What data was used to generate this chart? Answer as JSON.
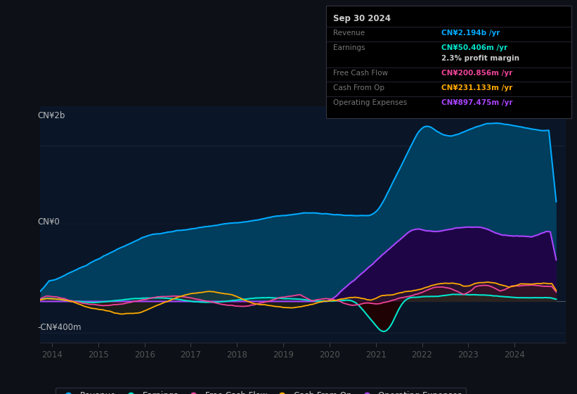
{
  "bg_color": "#0d1117",
  "plot_bg_color": "#0a1628",
  "ylabel_top": "CN¥2b",
  "ylabel_bottom": "-CN¥400m",
  "ylabel_zero": "CN¥0",
  "colors": {
    "revenue": "#00aaff",
    "earnings": "#00e5cc",
    "free_cash_flow": "#ee4499",
    "cash_from_op": "#ffaa00",
    "operating_expenses": "#aa44ff"
  },
  "legend_items": [
    "Revenue",
    "Earnings",
    "Free Cash Flow",
    "Cash From Op",
    "Operating Expenses"
  ],
  "tooltip": {
    "date": "Sep 30 2024",
    "revenue_label": "Revenue",
    "revenue_value": "CN¥2.194b",
    "earnings_label": "Earnings",
    "earnings_value": "CN¥50.406m",
    "profit_margin": "2.3% profit margin",
    "fcf_label": "Free Cash Flow",
    "fcf_value": "CN¥200.856m",
    "cashop_label": "Cash From Op",
    "cashop_value": "CN¥231.133m",
    "opex_label": "Operating Expenses",
    "opex_value": "CN¥897.475m"
  }
}
